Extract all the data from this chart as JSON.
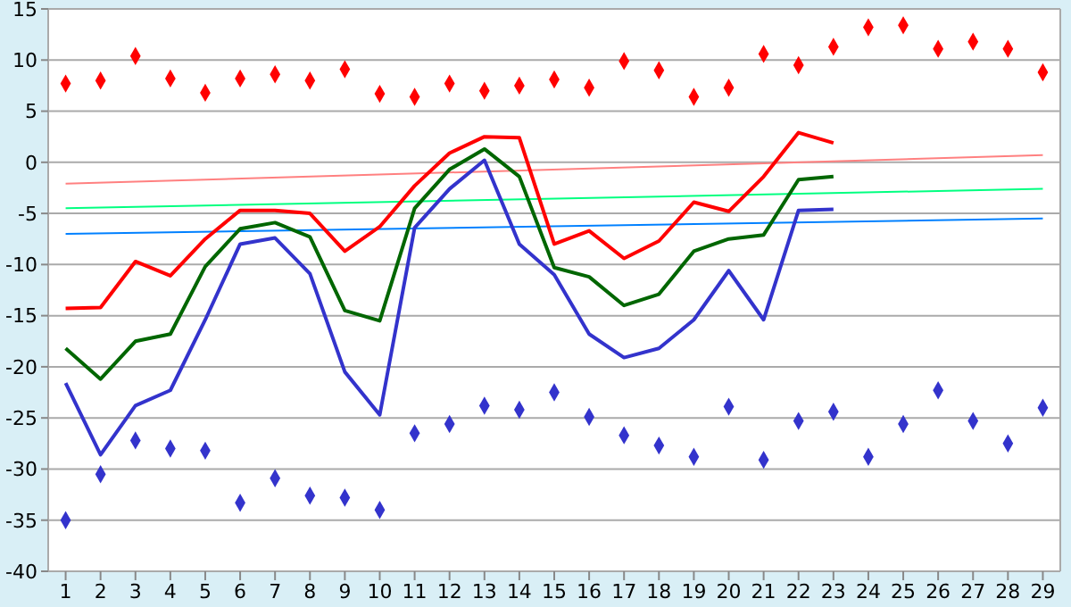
{
  "chart_data": {
    "type": "line",
    "x": [
      1,
      2,
      3,
      4,
      5,
      6,
      7,
      8,
      9,
      10,
      11,
      12,
      13,
      14,
      15,
      16,
      17,
      18,
      19,
      20,
      21,
      22,
      23,
      24,
      25,
      26,
      27,
      28,
      29
    ],
    "xlim": [
      0.5,
      29.5
    ],
    "xticks": [
      1,
      2,
      3,
      4,
      5,
      6,
      7,
      8,
      9,
      10,
      11,
      12,
      13,
      14,
      15,
      16,
      17,
      18,
      19,
      20,
      21,
      22,
      23,
      24,
      25,
      26,
      27,
      28,
      29
    ],
    "ylim": [
      -40,
      15
    ],
    "yticks": [
      -40,
      -35,
      -30,
      -25,
      -20,
      -15,
      -10,
      -5,
      0,
      5,
      10,
      15
    ],
    "grid": "y",
    "legend": false,
    "series": [
      {
        "color": "#ff8080",
        "values": [
          -2.1,
          null,
          null,
          null,
          null,
          null,
          null,
          null,
          null,
          null,
          null,
          null,
          null,
          null,
          null,
          null,
          null,
          null,
          null,
          null,
          null,
          null,
          null,
          null,
          null,
          null,
          null,
          null,
          0.7
        ]
      },
      {
        "color": "#00ff80",
        "values": [
          -4.5,
          null,
          null,
          null,
          null,
          null,
          null,
          null,
          null,
          null,
          null,
          null,
          null,
          null,
          null,
          null,
          null,
          null,
          null,
          null,
          null,
          null,
          null,
          null,
          null,
          null,
          null,
          null,
          -2.6
        ]
      },
      {
        "color": "#0080ff",
        "values": [
          -7.0,
          null,
          null,
          null,
          null,
          null,
          null,
          null,
          null,
          null,
          null,
          null,
          null,
          null,
          null,
          null,
          null,
          null,
          null,
          null,
          null,
          null,
          null,
          null,
          null,
          null,
          null,
          null,
          -5.5
        ]
      },
      {
        "type": "line",
        "color": "#ff0000",
        "values": [
          -14.3,
          -14.2,
          -9.7,
          -11.1,
          -7.5,
          -4.7,
          -4.7,
          -5.0,
          -8.7,
          -6.3,
          -2.3,
          0.9,
          2.5,
          2.4,
          -8.0,
          -6.7,
          -9.4,
          -7.7,
          -3.9,
          -4.8,
          -1.4,
          2.9,
          1.9,
          null,
          null,
          null,
          null,
          null,
          null
        ]
      },
      {
        "type": "line",
        "color": "#006600",
        "values": [
          -18.2,
          -21.2,
          -17.5,
          -16.8,
          -10.2,
          -6.5,
          -5.9,
          -7.3,
          -14.5,
          -15.5,
          -4.5,
          -0.7,
          1.3,
          -1.4,
          -10.3,
          -11.2,
          -14.0,
          -12.9,
          -8.7,
          -7.5,
          -7.1,
          -1.7,
          -1.4,
          null,
          null,
          null,
          null,
          null,
          null
        ]
      },
      {
        "type": "line",
        "color": "#3333cc",
        "values": [
          -21.6,
          -28.6,
          -23.8,
          -22.3,
          -15.4,
          -8.0,
          -7.4,
          -10.9,
          -20.5,
          -24.7,
          -6.4,
          -2.6,
          0.2,
          -8.0,
          -11.0,
          -16.8,
          -19.1,
          -18.2,
          -15.4,
          -10.6,
          -15.4,
          -4.7,
          -4.6,
          null,
          null,
          null,
          null,
          null,
          null
        ]
      },
      {
        "type": "scatter",
        "color": "#ff0000",
        "marker": "diamond",
        "values": [
          7.7,
          8.0,
          10.4,
          8.2,
          6.8,
          8.2,
          8.6,
          8.0,
          9.1,
          6.7,
          6.4,
          7.7,
          7.0,
          7.5,
          8.1,
          7.3,
          9.9,
          9.0,
          6.4,
          7.3,
          10.6,
          9.5,
          11.3,
          13.2,
          13.4,
          11.1,
          11.8,
          11.1,
          8.8
        ]
      },
      {
        "type": "scatter",
        "color": "#3333cc",
        "marker": "diamond",
        "values": [
          -35.0,
          -30.5,
          -27.2,
          -28.0,
          -28.2,
          -33.3,
          -30.9,
          -32.6,
          -32.8,
          -34.0,
          -26.5,
          -25.6,
          -23.8,
          -24.2,
          -22.5,
          -24.9,
          -26.7,
          -27.7,
          -28.8,
          -23.9,
          -29.1,
          -25.3,
          -24.4,
          -28.8,
          -25.6,
          -22.3,
          -25.3,
          -27.5,
          -24.0
        ]
      }
    ]
  }
}
